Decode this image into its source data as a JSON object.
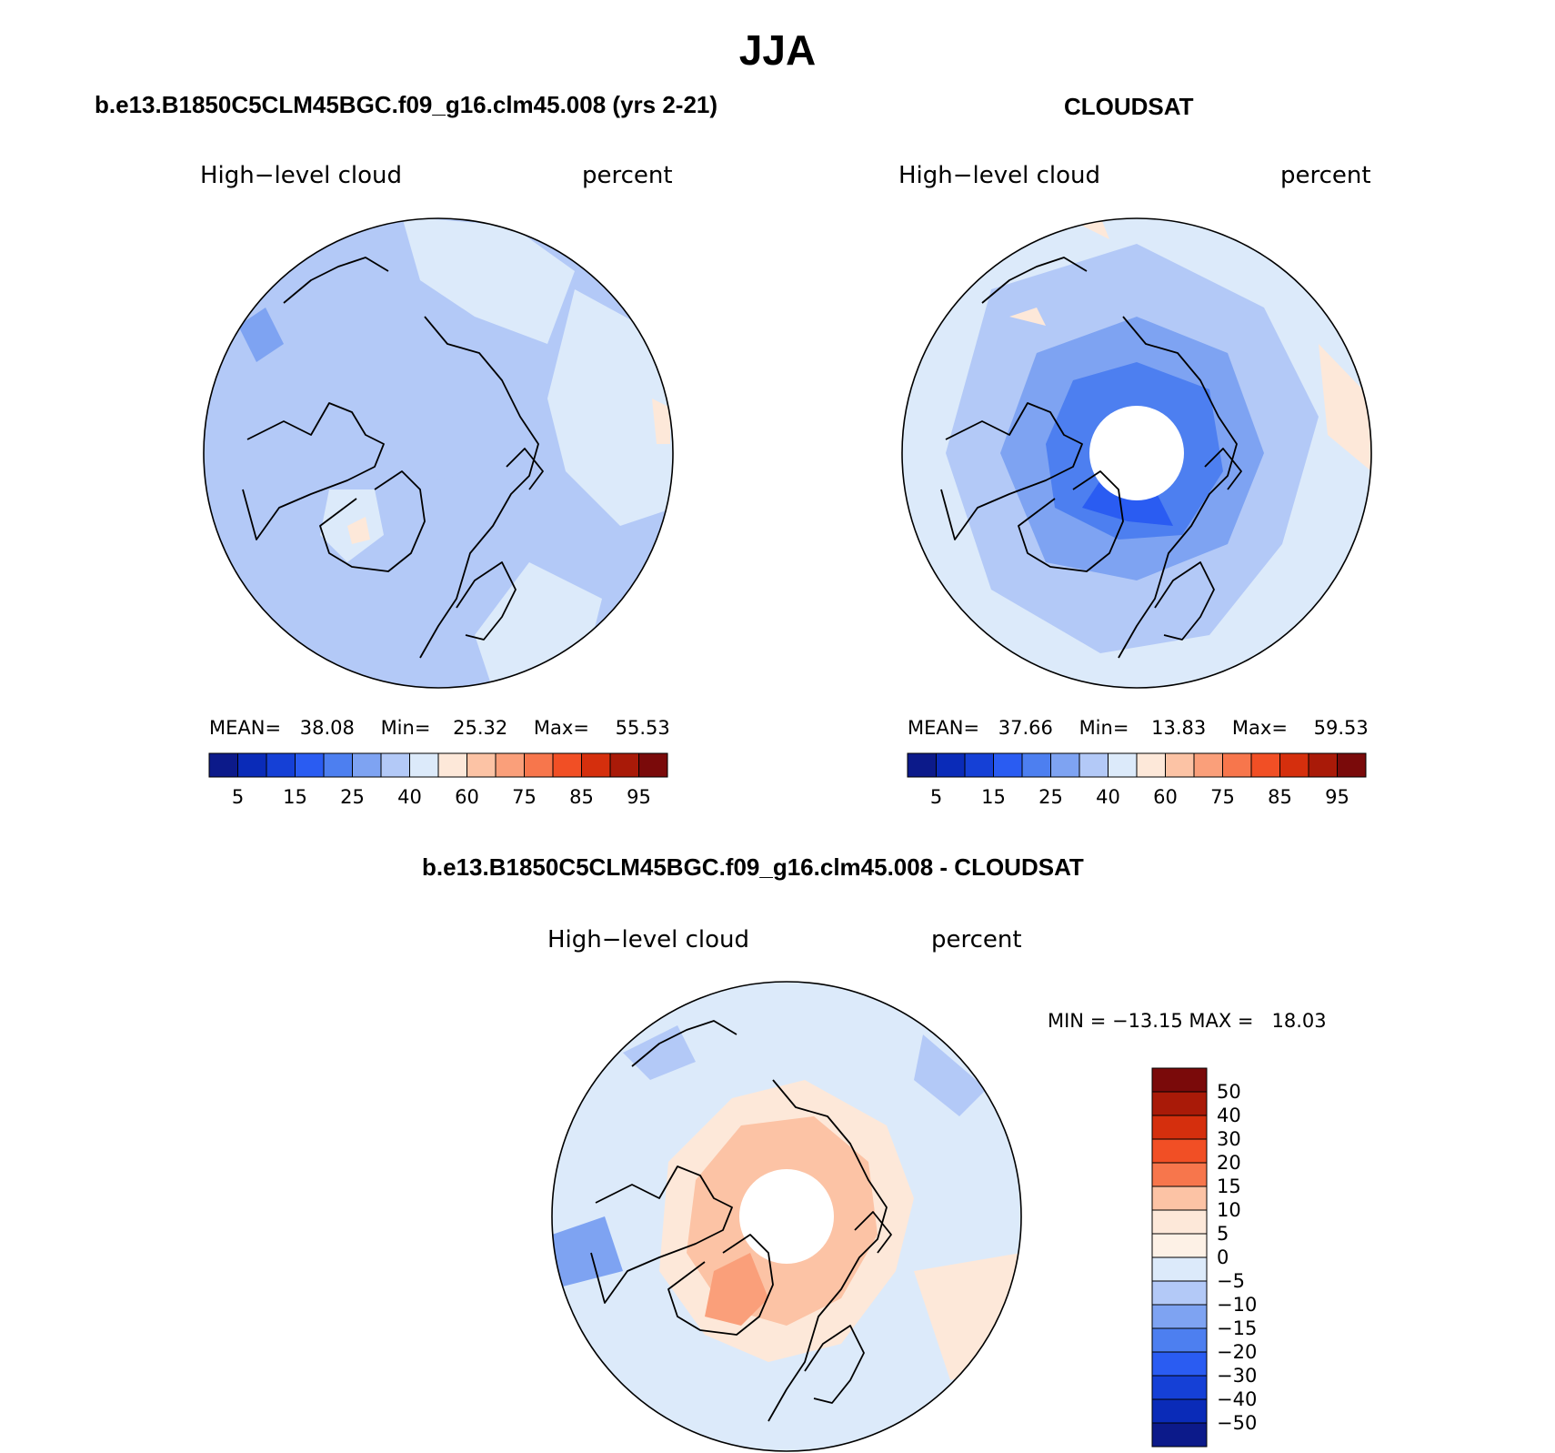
{
  "title": "JJA",
  "panels": [
    {
      "heading": "b.e13.B1850C5CLM45BGC.f09_g16.clm45.008 (yrs 2-21)",
      "variable_label": "High−level cloud",
      "units_label": "percent",
      "stats": {
        "mean_label": "MEAN=",
        "mean": "38.08",
        "min_label": "Min=",
        "min": "25.32",
        "max_label": "Max=",
        "max": "55.53"
      },
      "pole_hole": false
    },
    {
      "heading": "CLOUDSAT",
      "variable_label": "High−level cloud",
      "units_label": "percent",
      "stats": {
        "mean_label": "MEAN=",
        "mean": "37.66",
        "min_label": "Min=",
        "min": "13.83",
        "max_label": "Max=",
        "max": "59.53"
      },
      "pole_hole": true
    },
    {
      "heading": "b.e13.B1850C5CLM45BGC.f09_g16.clm45.008 - CLOUDSAT",
      "variable_label": "High−level cloud",
      "units_label": "percent",
      "minmax_text": "MIN = −13.15 MAX =   18.03",
      "pole_hole": true
    }
  ],
  "field_colorbar": {
    "tick_labels": [
      "5",
      "15",
      "25",
      "40",
      "60",
      "75",
      "85",
      "95"
    ],
    "colors": [
      "#0c1a8a",
      "#0a2bb8",
      "#1540d6",
      "#2a5cf2",
      "#4d7ff0",
      "#7ea3f2",
      "#b3c9f7",
      "#dceafa",
      "#fde8d9",
      "#fcc3a5",
      "#fa9f7a",
      "#f7764c",
      "#f14f25",
      "#d52f0d",
      "#a91a08",
      "#7a0a0a"
    ]
  },
  "diff_colorbar": {
    "tick_labels": [
      "50",
      "40",
      "30",
      "20",
      "15",
      "10",
      "5",
      "0",
      "−5",
      "−10",
      "−15",
      "−20",
      "−30",
      "−40",
      "−50"
    ],
    "colors": [
      "#7a0a0a",
      "#a91a08",
      "#d52f0d",
      "#f14f25",
      "#f7764c",
      "#fcc3a5",
      "#fde8d9",
      "#fdf1e6",
      "#dceafa",
      "#b3c9f7",
      "#7ea3f2",
      "#4d7ff0",
      "#2a5cf2",
      "#1540d6",
      "#0a2bb8",
      "#0c1a8a"
    ]
  },
  "map_colors": {
    "land_outline": "#000000",
    "light_blue": "#dceafa",
    "mid_blue": "#b3c9f7",
    "blue": "#7ea3f2",
    "strong_blue": "#4d7ff0",
    "deep_blue": "#2a5cf2",
    "peach": "#fde8d9",
    "salmon": "#fcc3a5",
    "orange": "#fa9f7a",
    "pole_hole": "#ffffff"
  }
}
